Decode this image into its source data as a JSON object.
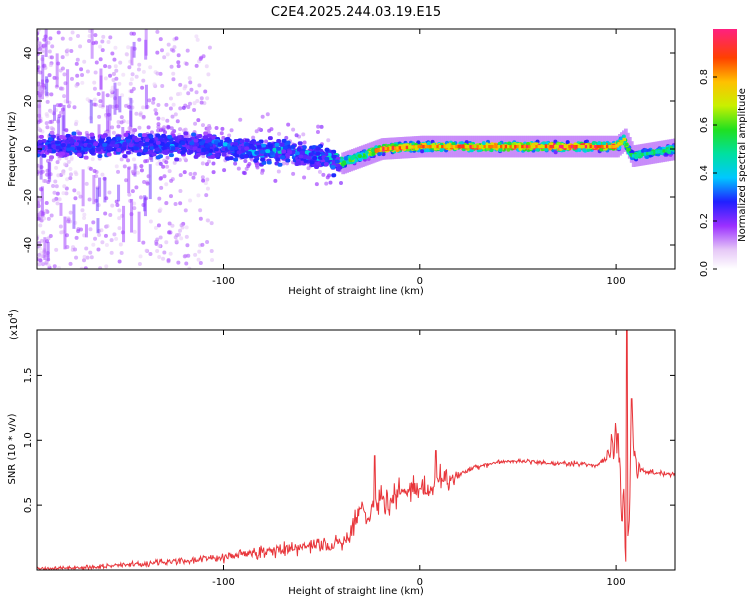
{
  "title": "C2E4.2025.244.03.19.E15",
  "chart_data": [
    {
      "type": "heatmap",
      "xlabel": "Height of straight line (km)",
      "ylabel": "Frequency (Hz)",
      "xlim": [
        -195,
        130
      ],
      "ylim": [
        -50,
        50
      ],
      "x_ticks": [
        -100,
        0,
        100
      ],
      "y_ticks": [
        -40,
        -20,
        0,
        20,
        40
      ],
      "colorbar": {
        "label": "Normalized spectral amplitude",
        "range": [
          0,
          1
        ],
        "ticks": [
          0.0,
          0.2,
          0.4,
          0.6,
          0.8
        ],
        "tick_labels": [
          "0.0",
          "0.2",
          "0.4",
          "0.6",
          "0.8"
        ]
      },
      "trend": {
        "x": [
          -195,
          -150,
          -100,
          -70,
          -50,
          -40,
          -30,
          -20,
          0,
          50,
          100,
          104,
          108,
          130
        ],
        "center_freq": [
          1,
          2,
          1,
          -1,
          -3,
          -6,
          -3,
          0,
          1,
          1,
          1,
          4,
          -3,
          0
        ],
        "peak_amplitude": [
          0.2,
          0.3,
          0.35,
          0.4,
          0.35,
          0.65,
          0.5,
          0.9,
          0.85,
          0.9,
          0.95,
          0.7,
          0.5,
          0.55
        ]
      }
    },
    {
      "type": "line",
      "xlabel": "Height of straight line (km)",
      "ylabel": "SNR (10 * v/v)",
      "y_multiplier": "(x10",
      "y_multiplier_exp": "4",
      "y_multiplier_close": ")",
      "xlim": [
        -195,
        130
      ],
      "ylim": [
        0,
        1.85
      ],
      "x_ticks": [
        -100,
        0,
        100
      ],
      "y_ticks": [
        0.5,
        1.0,
        1.5
      ],
      "y_tick_labels": [
        "0.5",
        "1.0",
        "1.5"
      ],
      "series": [
        {
          "color": "#e8363b",
          "x": [
            -195,
            -170,
            -150,
            -120,
            -100,
            -80,
            -60,
            -45,
            -40,
            -35,
            -30,
            -27,
            -24,
            -20,
            -15,
            -10,
            -5,
            0,
            5,
            10,
            15,
            20,
            30,
            40,
            50,
            60,
            70,
            80,
            90,
            95,
            98,
            100,
            102,
            104,
            106,
            108,
            110,
            115,
            120,
            130
          ],
          "y": [
            0.01,
            0.02,
            0.04,
            0.07,
            0.1,
            0.14,
            0.17,
            0.2,
            0.22,
            0.28,
            0.52,
            0.38,
            0.48,
            0.57,
            0.52,
            0.6,
            0.6,
            0.65,
            0.62,
            0.72,
            0.7,
            0.74,
            0.8,
            0.83,
            0.84,
            0.83,
            0.82,
            0.82,
            0.81,
            0.85,
            0.95,
            1.0,
            0.7,
            0.4,
            0.1,
            1.25,
            0.78,
            0.76,
            0.75,
            0.74
          ],
          "spikes": [
            {
              "x": -23,
              "y": 0.88
            },
            {
              "x": 8,
              "y": 0.92
            },
            {
              "x": 101,
              "y": 1.05
            },
            {
              "x": 105.5,
              "y": 1.85
            },
            {
              "x": 108,
              "y": 1.32
            }
          ]
        }
      ]
    }
  ]
}
